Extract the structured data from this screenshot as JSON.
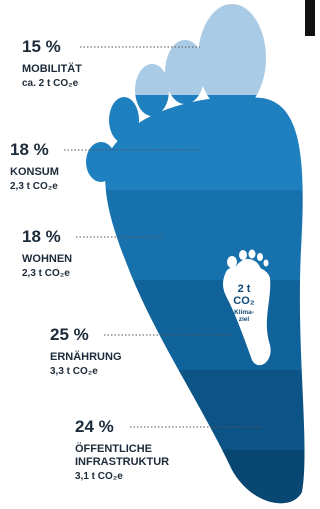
{
  "segments": [
    {
      "percent": "15 %",
      "label": [
        "MOBILITÄT"
      ],
      "amount": "ca. 2 t CO₂e"
    },
    {
      "percent": "18 %",
      "label": [
        "KONSUM"
      ],
      "amount": "2,3 t CO₂e"
    },
    {
      "percent": "18 %",
      "label": [
        "WOHNEN"
      ],
      "amount": "2,3 t CO₂e"
    },
    {
      "percent": "25 %",
      "label": [
        "ERNÄHRUNG"
      ],
      "amount": "3,3 t CO₂e"
    },
    {
      "percent": "24 %",
      "label": [
        "ÖFFENTLICHE",
        "INFRASTRUKTUR"
      ],
      "amount": "3,1 t CO₂e"
    }
  ],
  "target": {
    "lines": [
      "2 t",
      "CO₂",
      "Klima-",
      "ziel"
    ]
  }
}
